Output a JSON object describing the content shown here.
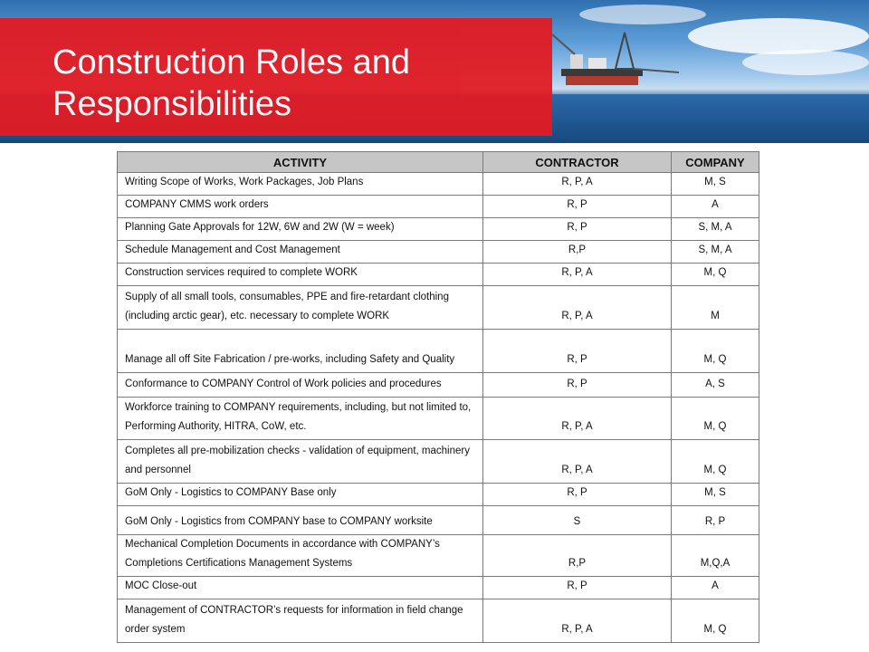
{
  "slide": {
    "title_line1": "Construction Roles and",
    "title_line2": "Responsibilities",
    "accent_color": "#e21b23"
  },
  "table": {
    "headers": [
      "ACTIVITY",
      "CONTRACTOR",
      "COMPANY"
    ],
    "rows": [
      [
        "Writing Scope of Works, Work Packages, Job Plans",
        "R, P, A",
        "M, S"
      ],
      [
        "COMPANY CMMS work orders",
        "R, P",
        "A"
      ],
      [
        "Planning Gate Approvals for 12W, 6W and 2W (W = week)",
        "R, P",
        "S, M, A"
      ],
      [
        "Schedule Management and Cost Management",
        "R,P",
        "S, M, A"
      ],
      [
        "Construction services required to complete WORK",
        "R, P, A",
        "M, Q"
      ],
      [
        "Supply of all small tools, consumables, PPE and fire-retardant clothing (including arctic gear), etc. necessary to complete WORK",
        "R, P, A",
        "M"
      ],
      [
        "Manage all off Site Fabrication / pre-works, including Safety and Quality",
        "R, P",
        "M, Q"
      ],
      [
        "Conformance to COMPANY Control of Work policies and procedures",
        "R, P",
        "A, S"
      ],
      [
        "Workforce training to COMPANY requirements, including, but not limited to, Performing Authority, HITRA, CoW, etc.",
        "R, P, A",
        "M, Q"
      ],
      [
        "Completes all pre-mobilization checks - validation of equipment, machinery and personnel",
        "R, P, A",
        "M, Q"
      ],
      [
        "GoM Only - Logistics to COMPANY Base only",
        "R, P",
        "M, S"
      ],
      [
        "GoM Only - Logistics from COMPANY base to COMPANY worksite",
        "S",
        "R, P"
      ],
      [
        "Mechanical Completion Documents in accordance with COMPANY’s Completions Certifications Management Systems",
        "R,P",
        "M,Q,A"
      ],
      [
        "MOC Close-out",
        "R, P",
        "A"
      ],
      [
        "Management of CONTRACTOR’s requests for information in field change order system",
        "R, P, A",
        "M, Q"
      ]
    ]
  }
}
